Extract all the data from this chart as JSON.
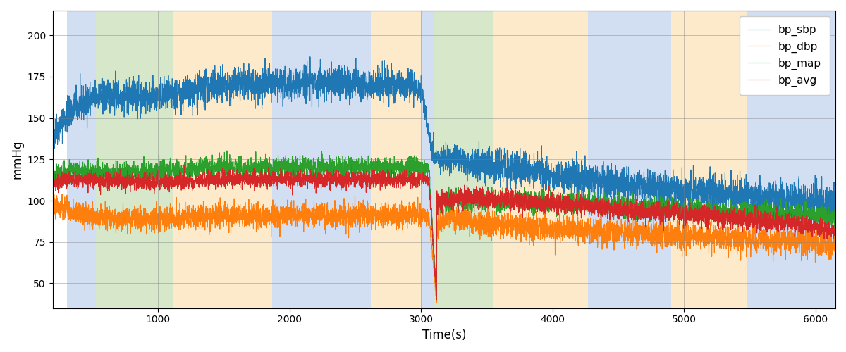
{
  "xlabel": "Time(s)",
  "ylabel": "mmHg",
  "xlim": [
    200,
    6150
  ],
  "ylim": [
    35,
    215
  ],
  "yticks": [
    50,
    75,
    100,
    125,
    150,
    175,
    200
  ],
  "figsize": [
    12.0,
    5.0
  ],
  "dpi": 100,
  "legend_labels": [
    "bp_sbp",
    "bp_dbp",
    "bp_map",
    "bp_avg"
  ],
  "line_colors": [
    "#1f77b4",
    "#ff7f0e",
    "#2ca02c",
    "#d62728"
  ],
  "bg_bands": [
    {
      "xmin": 310,
      "xmax": 530,
      "color": "#aec6e8",
      "alpha": 0.55
    },
    {
      "xmin": 530,
      "xmax": 1120,
      "color": "#b5d5a0",
      "alpha": 0.55
    },
    {
      "xmin": 1120,
      "xmax": 1870,
      "color": "#fdd9a0",
      "alpha": 0.55
    },
    {
      "xmin": 1870,
      "xmax": 2620,
      "color": "#aec6e8",
      "alpha": 0.55
    },
    {
      "xmin": 2620,
      "xmax": 3000,
      "color": "#fdd9a0",
      "alpha": 0.55
    },
    {
      "xmin": 3000,
      "xmax": 3100,
      "color": "#aec6e8",
      "alpha": 0.55
    },
    {
      "xmin": 3100,
      "xmax": 3550,
      "color": "#b5d5a0",
      "alpha": 0.55
    },
    {
      "xmin": 3550,
      "xmax": 4270,
      "color": "#fdd9a0",
      "alpha": 0.55
    },
    {
      "xmin": 4270,
      "xmax": 4900,
      "color": "#aec6e8",
      "alpha": 0.55
    },
    {
      "xmin": 4900,
      "xmax": 5480,
      "color": "#fdd9a0",
      "alpha": 0.55
    },
    {
      "xmin": 5480,
      "xmax": 6150,
      "color": "#aec6e8",
      "alpha": 0.55
    }
  ],
  "seed": 42
}
